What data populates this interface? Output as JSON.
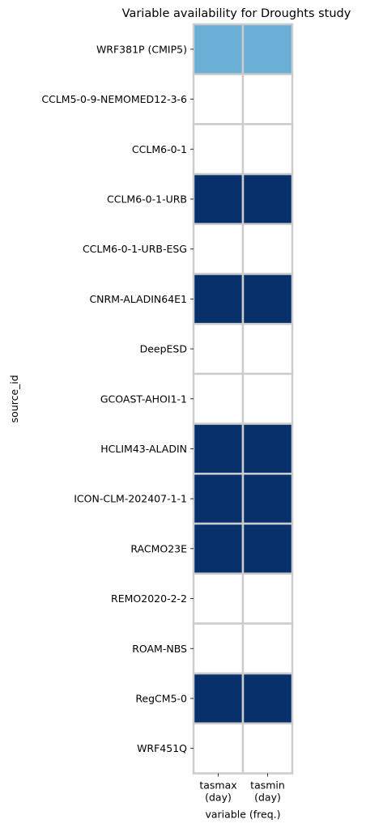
{
  "chart_data": {
    "type": "heatmap",
    "title": "Variable availability for Droughts study",
    "xlabel": "variable (freq.)",
    "ylabel": "source_id",
    "columns": [
      {
        "name": "tasmax",
        "freq": "(day)"
      },
      {
        "name": "tasmin",
        "freq": "(day)"
      }
    ],
    "rows": [
      "WRF381P (CMIP5)",
      "CCLM5-0-9-NEMOMED12-3-6",
      "CCLM6-0-1",
      "CCLM6-0-1-URB",
      "CCLM6-0-1-URB-ESG",
      "CNRM-ALADIN64E1",
      "DeepESD",
      "GCOAST-AHOI1-1",
      "HCLIM43-ALADIN",
      "ICON-CLM-202407-1-1",
      "RACMO23E",
      "REMO2020-2-2",
      "ROAM-NBS",
      "RegCM5-0",
      "WRF451Q"
    ],
    "values": [
      [
        1,
        1
      ],
      [
        0,
        0
      ],
      [
        0,
        0
      ],
      [
        2,
        2
      ],
      [
        0,
        0
      ],
      [
        2,
        2
      ],
      [
        0,
        0
      ],
      [
        0,
        0
      ],
      [
        2,
        2
      ],
      [
        2,
        2
      ],
      [
        2,
        2
      ],
      [
        0,
        0
      ],
      [
        0,
        0
      ],
      [
        2,
        2
      ],
      [
        0,
        0
      ]
    ],
    "colors": {
      "0": "#ffffff",
      "1": "#6baed6",
      "2": "#08306b"
    },
    "gridline_color": "#cccccc",
    "grid": true
  }
}
